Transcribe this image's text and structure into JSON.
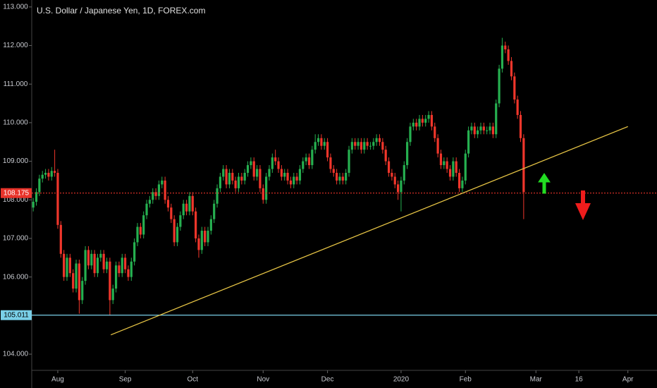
{
  "chart_data": {
    "type": "candlestick",
    "title": "U.S. Dollar / Japanese Yen, 1D, FOREX.com",
    "up_color": "#26b050",
    "down_color": "#f0362b",
    "grid": false,
    "xlim": [
      -0.5,
      203.5
    ],
    "ylim": [
      103.58,
      113.18
    ],
    "xticks": [
      {
        "value": 8,
        "label": "Aug"
      },
      {
        "value": 30,
        "label": "Sep"
      },
      {
        "value": 52,
        "label": "Oct"
      },
      {
        "value": 75,
        "label": "Nov"
      },
      {
        "value": 96,
        "label": "Dec"
      },
      {
        "value": 120,
        "label": "2020"
      },
      {
        "value": 141,
        "label": "Feb"
      },
      {
        "value": 164,
        "label": "Mar"
      },
      {
        "value": 178,
        "label": "16"
      },
      {
        "value": 194,
        "label": "Apr"
      }
    ],
    "yticks": [
      {
        "value": 104,
        "label": "104.000"
      },
      {
        "value": 105,
        "label": "105.000"
      },
      {
        "value": 106,
        "label": "106.000"
      },
      {
        "value": 107,
        "label": "107.000"
      },
      {
        "value": 108,
        "label": "108.000"
      },
      {
        "value": 109,
        "label": "109.000"
      },
      {
        "value": 110,
        "label": "110.000"
      },
      {
        "value": 111,
        "label": "111.000"
      },
      {
        "value": 112,
        "label": "112.000"
      },
      {
        "value": 113,
        "label": "113.000"
      }
    ],
    "open": [
      107.8,
      107.95,
      108.2,
      108.55,
      108.65,
      108.7,
      108.6,
      108.75,
      108.7,
      107.35,
      106.6,
      106.0,
      106.5,
      106.1,
      105.7,
      106.35,
      105.4,
      105.9,
      106.7,
      106.3,
      106.6,
      106.1,
      106.5,
      106.6,
      106.2,
      106.4,
      105.4,
      105.7,
      106.3,
      106.1,
      106.5,
      106.2,
      106.0,
      106.4,
      106.9,
      107.3,
      107.1,
      107.6,
      107.9,
      108.0,
      108.2,
      108.1,
      108.4,
      108.5,
      108.0,
      107.8,
      107.5,
      106.9,
      107.3,
      107.6,
      107.9,
      107.7,
      108.1,
      107.7,
      107.0,
      106.7,
      107.2,
      106.9,
      107.2,
      107.5,
      107.9,
      108.3,
      108.6,
      108.8,
      108.4,
      108.7,
      108.5,
      108.3,
      108.6,
      108.5,
      108.7,
      108.9,
      109.0,
      108.6,
      108.8,
      108.3,
      108.0,
      108.6,
      108.8,
      109.1,
      109.0,
      108.8,
      108.6,
      108.7,
      108.5,
      108.4,
      108.6,
      108.5,
      108.8,
      109.0,
      109.1,
      108.9,
      109.3,
      109.5,
      109.6,
      109.4,
      109.5,
      109.1,
      108.8,
      108.7,
      108.5,
      108.6,
      108.5,
      108.7,
      109.3,
      109.5,
      109.4,
      109.5,
      109.3,
      109.5,
      109.4,
      109.4,
      109.5,
      109.6,
      109.5,
      109.3,
      109.0,
      108.7,
      108.6,
      108.4,
      108.2,
      108.5,
      108.9,
      109.5,
      109.9,
      110.0,
      109.9,
      110.1,
      110.0,
      110.1,
      110.2,
      109.9,
      109.6,
      109.2,
      108.9,
      109.0,
      108.8,
      108.6,
      109.0,
      108.7,
      108.3,
      108.5,
      109.2,
      109.8,
      109.9,
      109.7,
      109.8,
      109.9,
      109.8,
      109.8,
      109.9,
      109.7,
      110.5,
      111.4,
      112.0,
      111.9,
      111.6,
      111.2,
      110.6,
      110.2,
      109.6
    ],
    "high": [
      108.05,
      108.3,
      108.65,
      108.75,
      108.8,
      108.8,
      108.85,
      109.3,
      108.8,
      107.45,
      106.7,
      106.6,
      106.6,
      106.2,
      106.45,
      106.45,
      106.0,
      106.8,
      106.8,
      106.7,
      106.7,
      106.6,
      106.7,
      106.7,
      106.5,
      106.5,
      105.8,
      106.4,
      106.4,
      106.6,
      106.6,
      106.3,
      106.5,
      107.0,
      107.4,
      107.4,
      107.7,
      108.0,
      108.1,
      108.3,
      108.3,
      108.5,
      108.6,
      108.6,
      108.1,
      107.9,
      107.6,
      107.4,
      107.7,
      108.0,
      108.0,
      108.2,
      108.2,
      107.8,
      107.1,
      107.3,
      107.3,
      107.3,
      107.6,
      108.0,
      108.4,
      108.7,
      108.9,
      108.9,
      108.8,
      108.8,
      108.6,
      108.7,
      108.7,
      108.8,
      109.0,
      109.1,
      109.1,
      108.9,
      108.9,
      108.4,
      108.7,
      108.9,
      109.2,
      109.3,
      109.1,
      108.9,
      108.8,
      108.8,
      108.6,
      108.7,
      108.7,
      108.9,
      109.1,
      109.2,
      109.2,
      109.4,
      109.7,
      109.7,
      109.7,
      109.6,
      109.6,
      109.2,
      108.9,
      108.8,
      108.7,
      108.7,
      108.8,
      109.4,
      109.6,
      109.6,
      109.6,
      109.6,
      109.6,
      109.6,
      109.5,
      109.6,
      109.7,
      109.7,
      109.6,
      109.4,
      109.1,
      108.8,
      108.7,
      108.5,
      108.6,
      109.0,
      109.6,
      110.0,
      110.1,
      110.1,
      110.2,
      110.2,
      110.2,
      110.3,
      110.3,
      110.0,
      109.7,
      109.3,
      109.1,
      109.1,
      108.9,
      109.1,
      109.1,
      108.8,
      108.6,
      109.3,
      109.9,
      110.0,
      110.0,
      109.9,
      110.0,
      110.0,
      109.9,
      110.0,
      110.0,
      110.6,
      111.5,
      112.2,
      112.1,
      112.0,
      111.7,
      111.3,
      110.7,
      110.3,
      109.7
    ],
    "low": [
      107.7,
      107.85,
      108.1,
      108.45,
      108.55,
      108.5,
      108.5,
      108.6,
      107.25,
      106.5,
      105.9,
      105.9,
      106.0,
      105.6,
      105.6,
      105.05,
      105.3,
      105.8,
      106.2,
      106.2,
      106.0,
      106.0,
      106.4,
      106.1,
      106.1,
      105.0,
      105.3,
      105.6,
      106.0,
      106.0,
      106.1,
      105.9,
      105.9,
      106.3,
      106.8,
      107.0,
      107.0,
      107.5,
      107.8,
      107.9,
      108.0,
      108.0,
      108.3,
      107.9,
      107.7,
      107.4,
      106.8,
      106.8,
      107.2,
      107.5,
      107.6,
      107.6,
      107.6,
      106.9,
      106.5,
      106.6,
      106.8,
      106.8,
      107.1,
      107.4,
      107.8,
      108.2,
      108.5,
      108.3,
      108.3,
      108.4,
      108.2,
      108.2,
      108.4,
      108.4,
      108.6,
      108.8,
      108.5,
      108.5,
      108.2,
      107.9,
      107.9,
      108.5,
      108.7,
      108.9,
      108.7,
      108.5,
      108.5,
      108.4,
      108.3,
      108.3,
      108.4,
      108.4,
      108.7,
      108.9,
      108.8,
      108.8,
      109.2,
      109.4,
      109.3,
      109.3,
      109.0,
      108.7,
      108.6,
      108.4,
      108.4,
      108.4,
      108.4,
      108.6,
      109.2,
      109.3,
      109.3,
      109.2,
      109.2,
      109.3,
      109.3,
      109.3,
      109.4,
      109.4,
      109.2,
      108.9,
      108.6,
      108.5,
      108.3,
      108.0,
      107.7,
      108.4,
      108.8,
      109.4,
      109.8,
      109.8,
      109.8,
      109.9,
      109.9,
      110.0,
      109.8,
      109.5,
      109.1,
      108.8,
      108.8,
      108.7,
      108.5,
      108.5,
      108.6,
      108.2,
      108.2,
      108.4,
      109.1,
      109.7,
      109.6,
      109.6,
      109.7,
      109.7,
      109.7,
      109.7,
      109.6,
      109.6,
      110.4,
      111.3,
      111.8,
      111.5,
      111.1,
      110.5,
      110.1,
      109.5,
      107.5
    ],
    "close": [
      107.95,
      108.2,
      108.55,
      108.65,
      108.7,
      108.6,
      108.75,
      108.7,
      107.35,
      106.6,
      106.0,
      106.5,
      106.1,
      105.7,
      106.35,
      105.4,
      105.9,
      106.7,
      106.3,
      106.6,
      106.1,
      106.5,
      106.6,
      106.2,
      106.4,
      105.4,
      105.7,
      106.3,
      106.1,
      106.5,
      106.2,
      106.0,
      106.4,
      106.9,
      107.3,
      107.1,
      107.6,
      107.9,
      108.0,
      108.2,
      108.1,
      108.4,
      108.5,
      108.0,
      107.8,
      107.5,
      106.9,
      107.3,
      107.6,
      107.9,
      107.7,
      108.1,
      107.7,
      107.0,
      106.7,
      107.2,
      106.9,
      107.2,
      107.5,
      107.9,
      108.3,
      108.6,
      108.8,
      108.4,
      108.7,
      108.5,
      108.3,
      108.6,
      108.5,
      108.7,
      108.9,
      109.0,
      108.6,
      108.8,
      108.3,
      108.0,
      108.6,
      108.8,
      109.1,
      109.0,
      108.8,
      108.6,
      108.7,
      108.5,
      108.4,
      108.6,
      108.5,
      108.8,
      109.0,
      109.1,
      108.9,
      109.3,
      109.5,
      109.6,
      109.4,
      109.5,
      109.1,
      108.8,
      108.7,
      108.5,
      108.6,
      108.5,
      108.7,
      109.3,
      109.5,
      109.4,
      109.5,
      109.3,
      109.5,
      109.4,
      109.4,
      109.5,
      109.6,
      109.5,
      109.3,
      109.0,
      108.7,
      108.6,
      108.4,
      108.2,
      108.5,
      108.9,
      109.5,
      109.9,
      110.0,
      109.9,
      110.1,
      110.0,
      110.1,
      110.2,
      109.9,
      109.6,
      109.2,
      108.9,
      109.0,
      108.8,
      108.6,
      109.0,
      108.7,
      108.3,
      108.5,
      109.2,
      109.8,
      109.9,
      109.7,
      109.8,
      109.9,
      109.8,
      109.8,
      109.9,
      109.7,
      110.5,
      111.4,
      112.0,
      111.9,
      111.6,
      111.2,
      110.6,
      110.2,
      109.6,
      108.2
    ],
    "levels": [
      {
        "value": 108.175,
        "color": "#e8332a",
        "style": "dotted"
      },
      {
        "value": 105.011,
        "color": "#7ad0e8",
        "style": "solid"
      }
    ],
    "trendline": {
      "x": [
        25.3,
        194
      ],
      "y": [
        104.5,
        109.9
      ],
      "color": "#e6c445"
    }
  }
}
